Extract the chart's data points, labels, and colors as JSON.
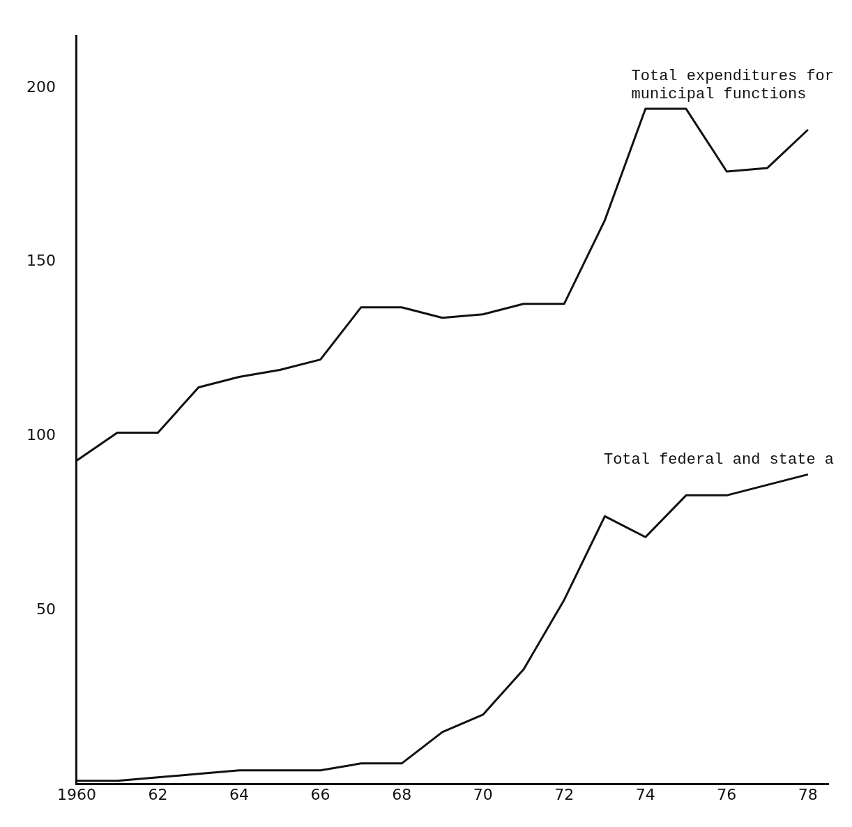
{
  "chart_data": {
    "type": "line",
    "x": [
      1960,
      1961,
      1962,
      1963,
      1964,
      1965,
      1966,
      1967,
      1968,
      1969,
      1970,
      1971,
      1972,
      1973,
      1974,
      1975,
      1976,
      1977,
      1978
    ],
    "series": [
      {
        "name": "Total expenditures for municipal functions",
        "color": "#111111",
        "values": [
          93,
          101,
          101,
          114,
          117,
          119,
          122,
          137,
          137,
          134,
          135,
          138,
          138,
          162,
          194,
          194,
          176,
          177,
          188
        ]
      },
      {
        "name": "Total federal and state a",
        "color": "#111111",
        "values": [
          1,
          1,
          2,
          3,
          4,
          4,
          4,
          6,
          6,
          15,
          20,
          33,
          53,
          77,
          71,
          83,
          83,
          86,
          89
        ]
      }
    ],
    "xlim": [
      1960,
      1978.5
    ],
    "xticks": [
      {
        "value": 1960,
        "label": "1960"
      },
      {
        "value": 1962,
        "label": "62"
      },
      {
        "value": 1964,
        "label": "64"
      },
      {
        "value": 1966,
        "label": "66"
      },
      {
        "value": 1968,
        "label": "68"
      },
      {
        "value": 1970,
        "label": "70"
      },
      {
        "value": 1972,
        "label": "72"
      },
      {
        "value": 1974,
        "label": "74"
      },
      {
        "value": 1976,
        "label": "76"
      },
      {
        "value": 1978,
        "label": "78"
      }
    ],
    "ylim": [
      0,
      215
    ],
    "yticks": [
      50,
      100,
      150,
      200
    ],
    "grid": false,
    "legend": false,
    "marker": "none",
    "line_style": "solid"
  }
}
